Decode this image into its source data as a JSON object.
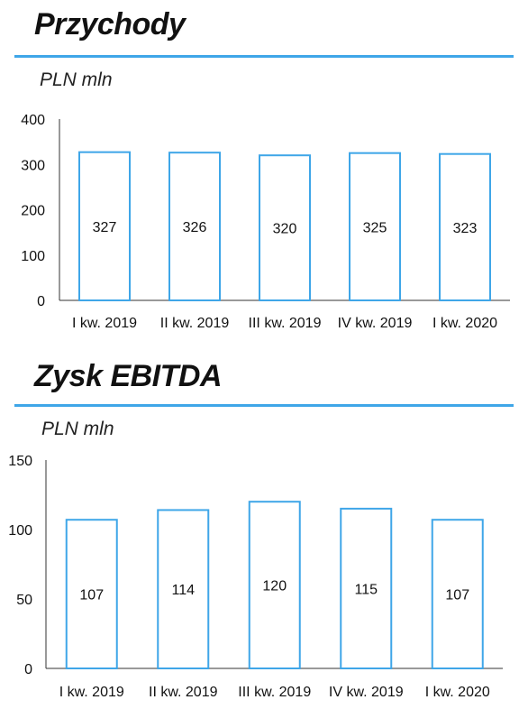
{
  "accent_color": "#3fa6e8",
  "sections": [
    {
      "title": "Przychody",
      "unit": "PLN mln"
    },
    {
      "title": "Zysk EBITDA",
      "unit": "PLN mln"
    }
  ],
  "chart_data": [
    {
      "type": "bar",
      "title": "Przychody",
      "ylabel": "PLN mln",
      "categories": [
        "I kw. 2019",
        "II kw. 2019",
        "III kw. 2019",
        "IV kw. 2019",
        "I kw. 2020"
      ],
      "values": [
        327,
        326,
        320,
        325,
        323
      ],
      "ylim": [
        0,
        400
      ],
      "yticks": [
        0,
        100,
        200,
        300,
        400
      ],
      "grid": false,
      "bar_fill": "#ffffff",
      "bar_stroke": "#3fa6e8"
    },
    {
      "type": "bar",
      "title": "Zysk EBITDA",
      "ylabel": "PLN mln",
      "categories": [
        "I kw. 2019",
        "II kw. 2019",
        "III kw. 2019",
        "IV kw. 2019",
        "I kw. 2020"
      ],
      "values": [
        107,
        114,
        120,
        115,
        107
      ],
      "ylim": [
        0,
        150
      ],
      "yticks": [
        0,
        50,
        100,
        150
      ],
      "grid": false,
      "bar_fill": "#ffffff",
      "bar_stroke": "#3fa6e8"
    }
  ]
}
